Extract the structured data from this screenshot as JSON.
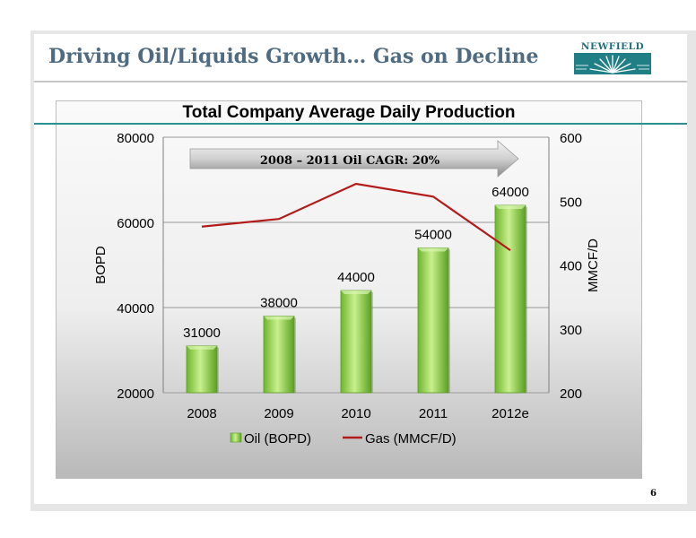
{
  "slide": {
    "title": "Driving Oil/Liquids Growth… Gas on Decline",
    "logo_text": "NEWFIELD",
    "page_number": "6"
  },
  "colors": {
    "title": "#4f6b82",
    "accent_teal": "#2f8f8f",
    "oil_bar": "#8fd14f",
    "gas_line": "#c00000"
  },
  "chart_data": {
    "type": "bar",
    "title": "Total Company Average Daily Production",
    "categories": [
      "2008",
      "2009",
      "2010",
      "2011",
      "2012e"
    ],
    "series": [
      {
        "name": "Oil (BOPD)",
        "type": "bar",
        "axis": "left",
        "values": [
          31000,
          38000,
          44000,
          54000,
          64000
        ]
      },
      {
        "name": "Gas (MMCF/D)",
        "type": "line",
        "axis": "right",
        "values": [
          460,
          472,
          527,
          507,
          423
        ]
      }
    ],
    "ylabel": "BOPD",
    "y2label": "MMCF/D",
    "ylim": [
      20000,
      80000
    ],
    "y2lim": [
      200,
      600
    ],
    "yticks": [
      "20000",
      "40000",
      "60000",
      "80000"
    ],
    "y2ticks": [
      "200",
      "300",
      "400",
      "500",
      "600"
    ],
    "data_labels": [
      "31000",
      "38000",
      "44000",
      "54000",
      "64000"
    ],
    "annotation": "2008 – 2011  Oil CAGR: 20%",
    "legend_position": "bottom",
    "grid": true
  }
}
